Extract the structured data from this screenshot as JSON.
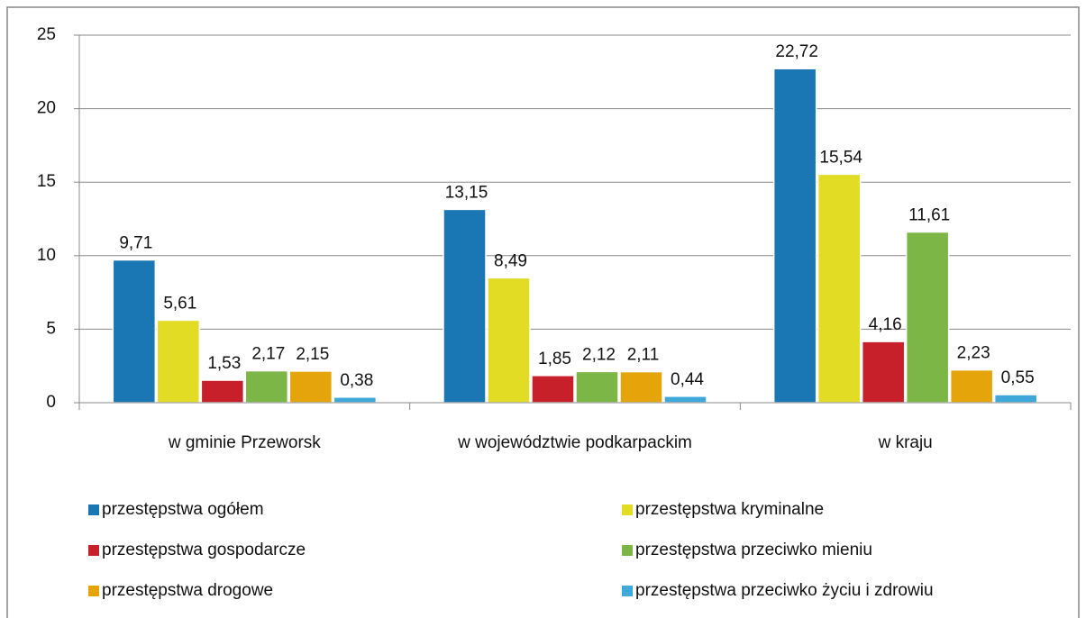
{
  "chart_data": {
    "type": "bar",
    "categories": [
      "w gminie Przeworsk",
      "w województwie podkarpackim",
      "w kraju"
    ],
    "series": [
      {
        "name": "przestępstwa ogółem",
        "color": "#1a77b3",
        "values": [
          9.71,
          13.15,
          22.72
        ],
        "value_labels": [
          "9,71",
          "13,15",
          "22,72"
        ]
      },
      {
        "name": "przestępstwa kryminalne",
        "color": "#e3dc24",
        "values": [
          5.61,
          8.49,
          15.54
        ],
        "value_labels": [
          "5,61",
          "8,49",
          "15,54"
        ]
      },
      {
        "name": "przestępstwa gospodarcze",
        "color": "#c8202a",
        "values": [
          1.53,
          1.85,
          4.16
        ],
        "value_labels": [
          "1,53",
          "1,85",
          "4,16"
        ]
      },
      {
        "name": "przestępstwa przeciwko mieniu",
        "color": "#7bb646",
        "values": [
          2.17,
          2.12,
          11.61
        ],
        "value_labels": [
          "2,17",
          "2,12",
          "11,61"
        ]
      },
      {
        "name": "przestępstwa drogowe",
        "color": "#e5a50a",
        "values": [
          2.15,
          2.11,
          2.23
        ],
        "value_labels": [
          "2,15",
          "2,11",
          "2,23"
        ]
      },
      {
        "name": "przestępstwa przeciwko życiu i zdrowiu",
        "color": "#3ea9d8",
        "values": [
          0.38,
          0.44,
          0.55
        ],
        "value_labels": [
          "0,38",
          "0,44",
          "0,55"
        ]
      }
    ],
    "ylim": [
      0,
      25
    ],
    "yticks": [
      0,
      5,
      10,
      15,
      20,
      25
    ],
    "grid": true,
    "legend": "bottom"
  }
}
